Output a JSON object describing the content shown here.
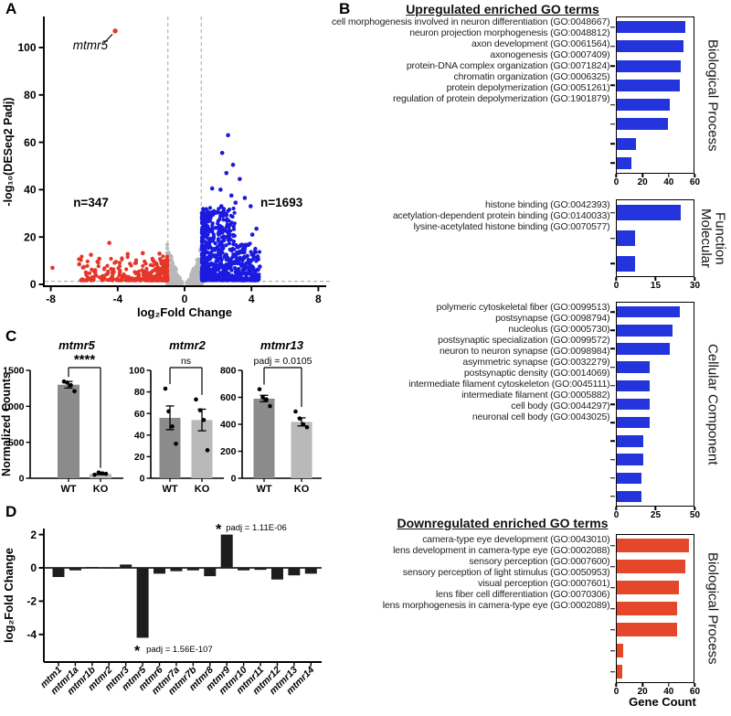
{
  "figure": {
    "panel_a_label": "A",
    "panel_b_label": "B",
    "panel_c_label": "C",
    "panel_d_label": "D"
  },
  "b_section": {
    "up_heading": "Upregulated enriched GO terms",
    "down_heading": "Downregulated enriched GO terms",
    "xlabel": "Gene Count"
  },
  "colors": {
    "go_up_blue": "#2334dd",
    "go_down_red": "#e5472a",
    "volcano_red": "#e4372a",
    "volcano_blue": "#1a1ae0",
    "nonsig_gray": "#b8b8b8",
    "wt_gray": "#8b8b8b",
    "ko_gray": "#b9b9b9",
    "bar_black": "#1d1d1d",
    "dash_gray": "#b3b3b3"
  },
  "chart_data": [
    {
      "id": "volcano",
      "type": "scatter",
      "xlabel": "log₂Fold Change",
      "ylabel": "-log₁₀(DESeq2 Padj)",
      "xticks": [
        -8,
        -4,
        0,
        4,
        8
      ],
      "yticks": [
        0,
        20,
        40,
        60,
        80,
        100
      ],
      "xlim": [
        -8.6,
        8.6
      ],
      "ylim": [
        0,
        112
      ],
      "threshold_x": [
        -1,
        1
      ],
      "threshold_y": 1.3,
      "series": [
        {
          "name": "downregulated",
          "label": "n=347",
          "n": 347,
          "color": "#e4372a",
          "label_pos": [
            -5.6,
            34.4
          ]
        },
        {
          "name": "upregulated",
          "label": "n=1693",
          "n": 1693,
          "color": "#1a1ae0",
          "label_pos": [
            5.8,
            34.4
          ]
        },
        {
          "name": "nonsignificant",
          "color": "#b8b8b8"
        }
      ],
      "highlight": {
        "gene": "mtmr5",
        "x": -4.15,
        "y": 107
      },
      "outliers_up": [
        [
          2.6,
          63
        ],
        [
          2.25,
          55.5
        ],
        [
          2.9,
          50.5
        ],
        [
          2.5,
          47
        ],
        [
          3.3,
          44.5
        ],
        [
          1.65,
          40.5
        ],
        [
          2.15,
          40
        ],
        [
          2.8,
          37.5
        ],
        [
          3.6,
          36.5
        ],
        [
          3.05,
          34.5
        ],
        [
          2.2,
          33
        ],
        [
          3.95,
          33
        ],
        [
          4.3,
          23.5
        ],
        [
          4.05,
          21
        ],
        [
          3.55,
          15.5
        ],
        [
          3.75,
          12
        ],
        [
          3.9,
          8.5
        ],
        [
          4.5,
          7.5
        ]
      ],
      "outliers_down": [
        [
          -7.9,
          7
        ],
        [
          -4.5,
          17.5
        ],
        [
          -5.6,
          12.5
        ],
        [
          -5.1,
          10.8
        ],
        [
          -3.4,
          12.8
        ],
        [
          -2.5,
          13.2
        ],
        [
          -1.5,
          13
        ],
        [
          -4.1,
          9.5
        ],
        [
          -6.3,
          8.5
        ],
        [
          -5.9,
          5
        ]
      ],
      "render": {
        "seed": 20,
        "n_up_drawn": 880,
        "n_down_drawn": 337,
        "n_gray_drawn": 420
      }
    },
    {
      "id": "go-upregulated-biological-process",
      "type": "bar",
      "orientation": "horizontal",
      "section_label": "Biological Process",
      "color": "#2334dd",
      "xmax": 60,
      "xticks": [
        0,
        20,
        40,
        60
      ],
      "categories": [
        "cell morphogenesis involved in neuron differentiation (GO:0048667)",
        "neuron projection morphogenesis (GO:0048812)",
        "axon development (GO:0061564)",
        "axonogenesis (GO:0007409)",
        "protein-DNA complex organization (GO:0071824)",
        "chromatin organization (GO:0006325)",
        "protein depolymerization (GO:0051261)",
        "regulation of protein depolymerization (GO:1901879)"
      ],
      "values": [
        53,
        52,
        50,
        49,
        41,
        40,
        15,
        11
      ]
    },
    {
      "id": "go-upregulated-molecular-function",
      "type": "bar",
      "orientation": "horizontal",
      "section_label": "Molecular Function",
      "color": "#2334dd",
      "xmax": 30,
      "xticks": [
        0,
        15,
        30
      ],
      "categories": [
        "histone binding (GO:0042393)",
        "acetylation-dependent protein binding (GO:0140033)",
        "lysine-acetylated histone binding (GO:0070577)"
      ],
      "values": [
        25,
        7,
        7
      ]
    },
    {
      "id": "go-upregulated-cellular-component",
      "type": "bar",
      "orientation": "horizontal",
      "section_label": "Cellular Component",
      "color": "#2334dd",
      "xmax": 50,
      "xticks": [
        0,
        25,
        50
      ],
      "categories": [
        "polymeric cytoskeletal fiber (GO:0099513)",
        "postsynapse (GO:0098794)",
        "nucleolus (GO:0005730)",
        "postsynaptic specialization (GO:0099572)",
        "neuron to neuron synapse (GO:0098984)",
        "asymmetric synapse (GO:0032279)",
        "postsynaptic density (GO:0014069)",
        "intermediate filament cytoskeleton (GO:0045111)",
        "intermediate filament (GO:0005882)",
        "cell body (GO:0044297)",
        "neuronal cell body (GO:0043025)"
      ],
      "values": [
        41,
        36,
        34,
        21,
        21,
        21,
        21,
        17,
        17,
        16,
        16
      ]
    },
    {
      "id": "go-downregulated-biological-process",
      "type": "bar",
      "orientation": "horizontal",
      "section_label": "Biological Process",
      "color": "#e5472a",
      "xmax": 60,
      "xticks": [
        0,
        20,
        40,
        60
      ],
      "categories": [
        "camera-type eye development (GO:0043010)",
        "lens development in camera-type eye (GO:0002088)",
        "sensory perception (GO:0007600)",
        "sensory perception of light stimulus (GO:0050953)",
        "visual perception (GO:0007601)",
        "lens fiber cell differentiation (GO:0070306)",
        "lens morphogenesis in camera-type eye (GO:0002089)"
      ],
      "values": [
        56,
        53,
        48,
        47,
        47,
        5,
        4
      ]
    },
    {
      "id": "normalized-counts",
      "type": "bar",
      "ylabel": "Normalized Counts",
      "categories": [
        "WT",
        "KO"
      ],
      "charts": [
        {
          "title": "mtmr5",
          "ylim": [
            0,
            1500
          ],
          "yticks": [
            0,
            500,
            1000,
            1500
          ],
          "sig": "****",
          "groups": [
            {
              "label": "WT",
              "mean": 1300,
              "err": [
                1255,
                1345
              ],
              "dots": [
                1345,
                1330,
                1295,
                1210
              ]
            },
            {
              "label": "KO",
              "mean": 60,
              "err": [
                50,
                74
              ],
              "dots": [
                48,
                80,
                68,
                62
              ]
            }
          ]
        },
        {
          "title": "mtmr2",
          "ylim": [
            0,
            100
          ],
          "yticks": [
            0,
            20,
            40,
            60,
            80,
            100
          ],
          "sig": "ns",
          "groups": [
            {
              "label": "WT",
              "mean": 56,
              "err": [
                45,
                67
              ],
              "dots": [
                83,
                62,
                48,
                32
              ]
            },
            {
              "label": "KO",
              "mean": 54,
              "err": [
                44,
                64
              ],
              "dots": [
                73,
                63,
                54,
                26
              ]
            }
          ]
        },
        {
          "title": "mtmr13",
          "ylim": [
            0,
            800
          ],
          "yticks": [
            0,
            200,
            400,
            600,
            800
          ],
          "sig": "padj = 0.0105",
          "groups": [
            {
              "label": "WT",
              "mean": 590,
              "err": [
                568,
                615
              ],
              "dots": [
                660,
                600,
                585,
                535
              ]
            },
            {
              "label": "KO",
              "mean": 418,
              "err": [
                388,
                448
              ],
              "dots": [
                495,
                443,
                400,
                378
              ]
            }
          ]
        }
      ]
    },
    {
      "id": "mtmr-family-log2fc",
      "type": "bar",
      "ylabel": "log₂Fold Change",
      "yticks": [
        2,
        0,
        -2,
        -4
      ],
      "ylim": [
        -4.7,
        2.4
      ],
      "categories": [
        "mtm1",
        "mtmr1a",
        "mtmr1b",
        "mtmr2",
        "mtmr3",
        "mtmr5",
        "mtmr6",
        "mtmr7a",
        "mtmr7b",
        "mtmr8",
        "mtmr9",
        "mtmr10",
        "mtmr11",
        "mtmr12",
        "mtmr13",
        "mtmr14"
      ],
      "values": [
        -0.55,
        -0.15,
        0.05,
        -0.03,
        0.2,
        -4.2,
        -0.35,
        -0.2,
        -0.15,
        -0.5,
        2.0,
        -0.15,
        -0.12,
        -0.7,
        -0.45,
        -0.35
      ],
      "annotations": [
        {
          "index": 10,
          "star": "*",
          "text": "padj = 1.11E-06",
          "position": "above"
        },
        {
          "index": 5,
          "star": "*",
          "text": "padj = 1.56E-107",
          "position": "below"
        }
      ]
    }
  ]
}
